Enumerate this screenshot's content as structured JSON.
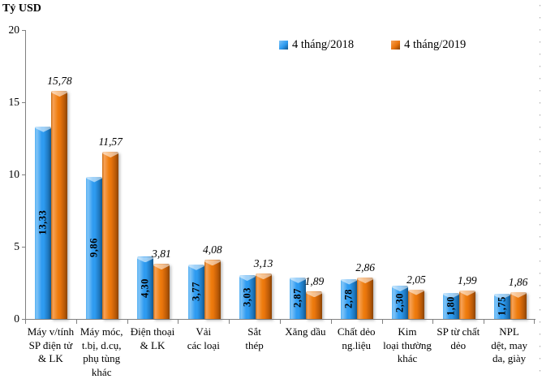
{
  "chart_data": {
    "type": "bar",
    "title": "",
    "ylabel": "Tỷ USD",
    "xlabel": "",
    "ylim": [
      0,
      20
    ],
    "yticks": [
      "0",
      "5",
      "10",
      "15",
      "20"
    ],
    "grid": false,
    "legend_position": "top-center-inside",
    "decimal_separator": ",",
    "categories": [
      "Máy v/tính\nSP điện tử\n& LK",
      "Máy móc,\nt.bị, d.cụ,\nphụ tùng\nkhác",
      "Điện thoại\n& LK",
      "Vải\ncác loại",
      "Sắt\nthép",
      "Xăng dầu",
      "Chất dẻo\nng.liệu",
      "Kim\nloại thường\nkhác",
      "SP từ chất\ndẻo",
      "NPL\ndệt, may\nda, giày"
    ],
    "series": [
      {
        "name": "4 tháng/2018",
        "color": "#2E9BF0",
        "values": [
          13.33,
          9.86,
          4.3,
          3.77,
          3.03,
          2.87,
          2.78,
          2.3,
          1.8,
          1.75
        ],
        "labels": [
          "13,33",
          "9,86",
          "4,30",
          "3,77",
          "3,03",
          "2,87",
          "2,78",
          "2,30",
          "1,80",
          "1,75"
        ]
      },
      {
        "name": "4 tháng/2019",
        "color": "#E8740C",
        "values": [
          15.78,
          11.57,
          3.81,
          4.08,
          3.13,
          1.89,
          2.86,
          2.05,
          1.99,
          1.86
        ],
        "labels": [
          "15,78",
          "11,57",
          "3,81",
          "4,08",
          "3,13",
          "1,89",
          "2,86",
          "2,05",
          "1,99",
          "1,86"
        ]
      }
    ],
    "axis_color": "#808080",
    "text_color": "#000000"
  }
}
